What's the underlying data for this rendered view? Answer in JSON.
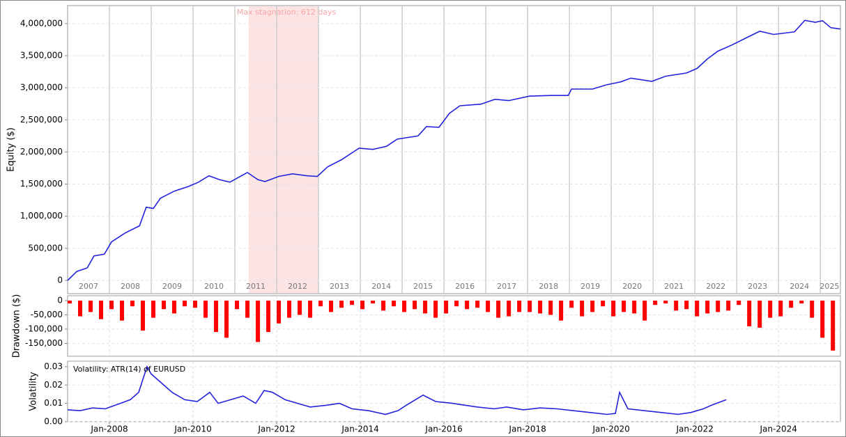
{
  "chart_data": [
    {
      "type": "line",
      "ylabel": "Equity ($)",
      "color": "#2222dd",
      "xlim": [
        2007.0,
        2025.48
      ],
      "ylim": [
        -206000,
        4280000
      ],
      "yticks": [
        0,
        {
          "value": 500000,
          "label": "500,000"
        },
        {
          "value": 1000000,
          "label": "1,000,000"
        },
        {
          "value": 1500000,
          "label": "1,500,000"
        },
        {
          "value": 2000000,
          "label": "2,000,000"
        },
        {
          "value": 2500000,
          "label": "2,500,000"
        },
        {
          "value": 3000000,
          "label": "3,000,000"
        },
        {
          "value": 3500000,
          "label": "3,500,000"
        },
        {
          "value": 4000000,
          "label": "4,000,000"
        }
      ],
      "xticks": [
        {
          "value": 2007.5,
          "label": "2007"
        },
        {
          "value": 2008.5,
          "label": "2008"
        },
        {
          "value": 2009.5,
          "label": "2009"
        },
        {
          "value": 2010.5,
          "label": "2010"
        },
        {
          "value": 2011.5,
          "label": "2011"
        },
        {
          "value": 2012.5,
          "label": "2012"
        },
        {
          "value": 2013.5,
          "label": "2013"
        },
        {
          "value": 2014.5,
          "label": "2014"
        },
        {
          "value": 2015.5,
          "label": "2015"
        },
        {
          "value": 2016.5,
          "label": "2016"
        },
        {
          "value": 2017.5,
          "label": "2017"
        },
        {
          "value": 2018.5,
          "label": "2018"
        },
        {
          "value": 2019.5,
          "label": "2019"
        },
        {
          "value": 2020.5,
          "label": "2020"
        },
        {
          "value": 2021.5,
          "label": "2021"
        },
        {
          "value": 2022.5,
          "label": "2022"
        },
        {
          "value": 2023.5,
          "label": "2023"
        },
        {
          "value": 2024.5,
          "label": "2024"
        },
        {
          "value": 2025.22,
          "label": "2025"
        }
      ],
      "year_lines": [
        2008,
        2009,
        2010,
        2011,
        2012,
        2013,
        2014,
        2015,
        2016,
        2017,
        2018,
        2019,
        2020,
        2021,
        2022,
        2023,
        2024,
        2025
      ],
      "stagnation": {
        "label": "Max stagnation: 612 days",
        "start": 2011.33,
        "end": 2013.01
      },
      "x": [
        2007.0,
        2007.22,
        2007.47,
        2007.63,
        2007.88,
        2008.05,
        2008.38,
        2008.72,
        2008.88,
        2009.05,
        2009.22,
        2009.55,
        2009.88,
        2010.13,
        2010.38,
        2010.63,
        2010.88,
        2011.3,
        2011.55,
        2011.72,
        2012.05,
        2012.38,
        2012.72,
        2012.97,
        2013.22,
        2013.55,
        2013.97,
        2014.3,
        2014.63,
        2014.88,
        2015.38,
        2015.58,
        2015.88,
        2016.13,
        2016.38,
        2016.88,
        2017.22,
        2017.55,
        2018.05,
        2018.55,
        2018.97,
        2019.05,
        2019.55,
        2019.88,
        2020.22,
        2020.47,
        2020.97,
        2021.3,
        2021.8,
        2022.05,
        2022.3,
        2022.55,
        2022.88,
        2023.22,
        2023.55,
        2023.88,
        2024.38,
        2024.63,
        2024.88,
        2025.05,
        2025.25,
        2025.48
      ],
      "values": [
        0,
        140000,
        195000,
        380000,
        410000,
        600000,
        740000,
        850000,
        1140000,
        1120000,
        1280000,
        1390000,
        1460000,
        1530000,
        1630000,
        1570000,
        1530000,
        1680000,
        1570000,
        1540000,
        1620000,
        1660000,
        1630000,
        1620000,
        1770000,
        1880000,
        2060000,
        2040000,
        2090000,
        2200000,
        2250000,
        2395000,
        2385000,
        2600000,
        2720000,
        2745000,
        2820000,
        2800000,
        2870000,
        2880000,
        2880000,
        2980000,
        2980000,
        3045000,
        3090000,
        3150000,
        3100000,
        3180000,
        3230000,
        3300000,
        3450000,
        3570000,
        3665000,
        3775000,
        3880000,
        3830000,
        3870000,
        4050000,
        4020000,
        4045000,
        3935000,
        3915000
      ]
    },
    {
      "type": "bar",
      "ylabel": "Drawdown ($)",
      "color": "#ff0000",
      "xlim": [
        2007.0,
        2025.48
      ],
      "ylim": [
        -195000,
        17000
      ],
      "yticks": [
        0,
        {
          "value": -50000,
          "label": "-50,000"
        },
        {
          "value": -100000,
          "label": "-100,000"
        },
        {
          "value": -150000,
          "label": "-150,000"
        }
      ],
      "x": [
        2007.0,
        2007.25,
        2007.5,
        2007.75,
        2008.0,
        2008.25,
        2008.5,
        2008.75,
        2009.0,
        2009.25,
        2009.5,
        2009.75,
        2010.0,
        2010.25,
        2010.5,
        2010.75,
        2011.0,
        2011.25,
        2011.5,
        2011.75,
        2012.0,
        2012.25,
        2012.5,
        2012.75,
        2013.0,
        2013.25,
        2013.5,
        2013.75,
        2014.0,
        2014.25,
        2014.5,
        2014.75,
        2015.0,
        2015.25,
        2015.5,
        2015.75,
        2016.0,
        2016.25,
        2016.5,
        2016.75,
        2017.0,
        2017.25,
        2017.5,
        2017.75,
        2018.0,
        2018.25,
        2018.5,
        2018.75,
        2019.0,
        2019.25,
        2019.5,
        2019.75,
        2020.0,
        2020.25,
        2020.5,
        2020.75,
        2021.0,
        2021.25,
        2021.5,
        2021.75,
        2022.0,
        2022.25,
        2022.5,
        2022.75,
        2023.0,
        2023.25,
        2023.5,
        2023.75,
        2024.0,
        2024.25,
        2024.5,
        2024.75,
        2025.0,
        2025.25
      ],
      "values": [
        -10000,
        -55000,
        -40000,
        -65000,
        -30000,
        -70000,
        -20000,
        -105000,
        -60000,
        -30000,
        -45000,
        -20000,
        -25000,
        -60000,
        -110000,
        -130000,
        -30000,
        -60000,
        -145000,
        -110000,
        -80000,
        -60000,
        -50000,
        -60000,
        -20000,
        -40000,
        -25000,
        -15000,
        -30000,
        -10000,
        -35000,
        -20000,
        -40000,
        -30000,
        -45000,
        -60000,
        -45000,
        -20000,
        -30000,
        -25000,
        -40000,
        -60000,
        -55000,
        -40000,
        -40000,
        -45000,
        -50000,
        -70000,
        -25000,
        -55000,
        -40000,
        -20000,
        -55000,
        -40000,
        -45000,
        -70000,
        -15000,
        -10000,
        -35000,
        -30000,
        -55000,
        -45000,
        -40000,
        -35000,
        -15000,
        -90000,
        -95000,
        -60000,
        -55000,
        -25000,
        -10000,
        -60000,
        -130000,
        -175000
      ]
    },
    {
      "type": "line",
      "ylabel": "Volatility",
      "legend": "Volatility: ATR(14) of EURUSD",
      "color": "#2222dd",
      "xlim": [
        2007.0,
        2025.48
      ],
      "ylim": [
        0,
        0.033
      ],
      "yticks": [
        {
          "value": 0,
          "label": "0.00"
        },
        {
          "value": 0.01,
          "label": "0.01"
        },
        {
          "value": 0.02,
          "label": "0.02"
        },
        {
          "value": 0.03,
          "label": "0.03"
        }
      ],
      "xticks": [
        {
          "value": 2008,
          "label": "Jan-2008"
        },
        {
          "value": 2010,
          "label": "Jan-2010"
        },
        {
          "value": 2012,
          "label": "Jan-2012"
        },
        {
          "value": 2014,
          "label": "Jan-2014"
        },
        {
          "value": 2016,
          "label": "Jan-2016"
        },
        {
          "value": 2018,
          "label": "Jan-2018"
        },
        {
          "value": 2020,
          "label": "Jan-2020"
        },
        {
          "value": 2022,
          "label": "Jan-2022"
        },
        {
          "value": 2024,
          "label": "Jan-2024"
        }
      ],
      "x": [
        2007.0,
        2007.3,
        2007.6,
        2007.9,
        2008.2,
        2008.5,
        2008.7,
        2008.9,
        2009.0,
        2009.2,
        2009.5,
        2009.8,
        2010.1,
        2010.4,
        2010.6,
        2010.9,
        2011.2,
        2011.5,
        2011.7,
        2011.9,
        2012.2,
        2012.5,
        2012.8,
        2013.2,
        2013.5,
        2013.8,
        2014.2,
        2014.6,
        2014.9,
        2015.1,
        2015.5,
        2015.8,
        2016.2,
        2016.5,
        2016.8,
        2017.2,
        2017.5,
        2017.9,
        2018.3,
        2018.7,
        2019.1,
        2019.5,
        2019.9,
        2020.1,
        2020.2,
        2020.4,
        2020.8,
        2021.2,
        2021.6,
        2021.9,
        2022.2,
        2022.4,
        2022.75
      ],
      "values": [
        0.0065,
        0.006,
        0.0075,
        0.007,
        0.0095,
        0.012,
        0.016,
        0.03,
        0.026,
        0.022,
        0.016,
        0.012,
        0.011,
        0.016,
        0.01,
        0.012,
        0.014,
        0.01,
        0.017,
        0.016,
        0.012,
        0.01,
        0.008,
        0.009,
        0.01,
        0.007,
        0.006,
        0.004,
        0.006,
        0.009,
        0.0145,
        0.011,
        0.01,
        0.009,
        0.008,
        0.007,
        0.008,
        0.0065,
        0.0075,
        0.007,
        0.006,
        0.005,
        0.004,
        0.0045,
        0.016,
        0.007,
        0.006,
        0.005,
        0.004,
        0.005,
        0.007,
        0.009,
        0.012
      ]
    }
  ]
}
